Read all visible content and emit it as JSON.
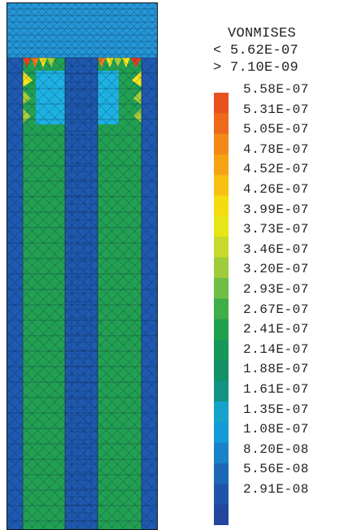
{
  "legend": {
    "title": "VONMISES",
    "max_text": "< 5.62E-07",
    "min_text": "> 7.10E-09",
    "levels": [
      "5.58E-07",
      "5.31E-07",
      "5.05E-07",
      "4.78E-07",
      "4.52E-07",
      "4.26E-07",
      "3.99E-07",
      "3.73E-07",
      "3.46E-07",
      "3.20E-07",
      "2.93E-07",
      "2.67E-07",
      "2.41E-07",
      "2.14E-07",
      "1.88E-07",
      "1.61E-07",
      "1.35E-07",
      "1.08E-07",
      "8.20E-08",
      "5.56E-08",
      "2.91E-08"
    ],
    "colors": [
      "#e8521f",
      "#ee6a1b",
      "#f28a17",
      "#f6a414",
      "#f8c012",
      "#f5dc10",
      "#e6e515",
      "#c6d92c",
      "#a0cb3a",
      "#6fbf47",
      "#3fae48",
      "#21a04e",
      "#15985a",
      "#129066",
      "#149384",
      "#16a3c9",
      "#149ad6",
      "#1a82c6",
      "#1e67b4",
      "#2054a8",
      "#22479c"
    ]
  },
  "mesh": {
    "colors": {
      "top_region": "#2597d8",
      "base_blue": "#1f59b0",
      "green_strip": "#22a052",
      "cyan": "#1db1e2",
      "yellow": "#f6e51a",
      "orange": "#f07920",
      "red": "#e23d22",
      "lime": "#a7cd38"
    }
  }
}
